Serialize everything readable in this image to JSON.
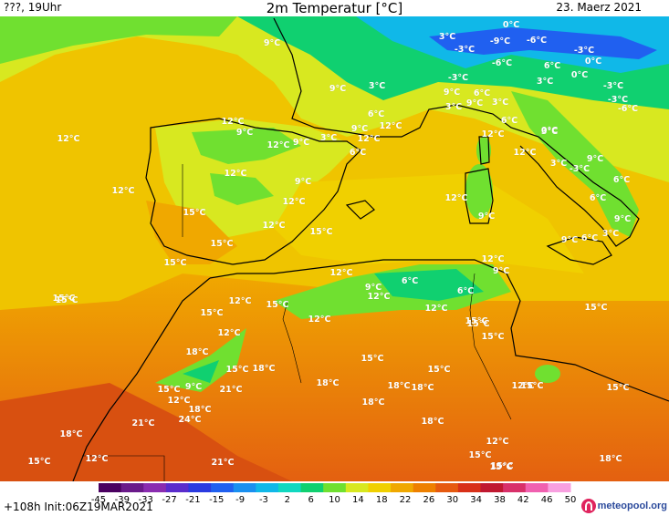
{
  "header": {
    "left": "???, 19Uhr",
    "title": "2m Temperatur [°C]",
    "date": "23. Maerz 2021"
  },
  "footer": {
    "run": "+108h Init:06Z19MAR2021",
    "brand": "meteopool.org"
  },
  "legend": {
    "ticks": [
      "-45",
      "-39",
      "-33",
      "-27",
      "-21",
      "-15",
      "-9",
      "-3",
      "2",
      "6",
      "10",
      "14",
      "18",
      "22",
      "26",
      "30",
      "34",
      "38",
      "42",
      "46",
      "50"
    ],
    "colors": [
      "#4a0060",
      "#6a1a8a",
      "#8a2cb0",
      "#5a2ccc",
      "#2a3ae0",
      "#2060f0",
      "#1a90f0",
      "#10b8e8",
      "#10d8c0",
      "#10d070",
      "#70e030",
      "#d8e820",
      "#f0d000",
      "#f0a800",
      "#ee8000",
      "#e65a10",
      "#d83018",
      "#c01830",
      "#d8306a",
      "#f060b0",
      "#f8a0e0"
    ]
  },
  "temperature_labels": [
    {
      "text": "12°C"
    },
    {
      "text": "12°C"
    },
    {
      "text": "15°C"
    },
    {
      "text": "9°C"
    },
    {
      "text": "9°C"
    },
    {
      "text": "3°C"
    },
    {
      "text": "0°C"
    },
    {
      "text": "3°C"
    },
    {
      "text": "-3°C"
    },
    {
      "text": "-9°C"
    },
    {
      "text": "-6°C"
    },
    {
      "text": "-6°C"
    },
    {
      "text": "-3°C"
    },
    {
      "text": "0°C"
    },
    {
      "text": "6°C"
    },
    {
      "text": "0°C"
    },
    {
      "text": "-3°C"
    },
    {
      "text": "3°C"
    },
    {
      "text": "-3°C"
    },
    {
      "text": "-6°C"
    },
    {
      "text": "-3°C"
    },
    {
      "text": "3°C"
    },
    {
      "text": "9°C"
    },
    {
      "text": "6°C"
    },
    {
      "text": "3°C"
    },
    {
      "text": "9°C"
    },
    {
      "text": "3°C"
    },
    {
      "text": "6°C"
    },
    {
      "text": "12°C"
    },
    {
      "text": "9°C"
    },
    {
      "text": "6°C"
    },
    {
      "text": "12°C"
    },
    {
      "text": "9°C"
    },
    {
      "text": "12°C"
    },
    {
      "text": "12°C"
    },
    {
      "text": "9°C"
    },
    {
      "text": "3°C"
    },
    {
      "text": "12°C"
    },
    {
      "text": "6°C"
    },
    {
      "text": "0°C"
    },
    {
      "text": "12°C"
    },
    {
      "text": "3°C"
    },
    {
      "text": "-3°C"
    },
    {
      "text": "9°C"
    },
    {
      "text": "6°C"
    },
    {
      "text": "12°C"
    },
    {
      "text": "9°C"
    },
    {
      "text": "6°C"
    },
    {
      "text": "12°C"
    },
    {
      "text": "9°C"
    },
    {
      "text": "15°C"
    },
    {
      "text": "12°C"
    },
    {
      "text": "12°C"
    },
    {
      "text": "15°C"
    },
    {
      "text": "15°C"
    },
    {
      "text": "9°C"
    },
    {
      "text": "6°C"
    },
    {
      "text": "3°C"
    },
    {
      "text": "9°C"
    },
    {
      "text": "12°C"
    },
    {
      "text": "9°C"
    },
    {
      "text": "15°C"
    },
    {
      "text": "12°C"
    },
    {
      "text": "9°C"
    },
    {
      "text": "6°C"
    },
    {
      "text": "12°C"
    },
    {
      "text": "6°C"
    },
    {
      "text": "12°C"
    },
    {
      "text": "12°C"
    },
    {
      "text": "15°C"
    },
    {
      "text": "15°C"
    },
    {
      "text": "15°C"
    },
    {
      "text": "12°C"
    },
    {
      "text": "15°C"
    },
    {
      "text": "15°C"
    },
    {
      "text": "18°C"
    },
    {
      "text": "12°C"
    },
    {
      "text": "15°C"
    },
    {
      "text": "18°C"
    },
    {
      "text": "15°C"
    },
    {
      "text": "15°C"
    },
    {
      "text": "15°C"
    },
    {
      "text": "9°C"
    },
    {
      "text": "12°C"
    },
    {
      "text": "21°C"
    },
    {
      "text": "18°C"
    },
    {
      "text": "24°C"
    },
    {
      "text": "21°C"
    },
    {
      "text": "18°C"
    },
    {
      "text": "18°C"
    },
    {
      "text": "21°C"
    },
    {
      "text": "18°C"
    },
    {
      "text": "18°C"
    },
    {
      "text": "18°C"
    },
    {
      "text": "15°C"
    },
    {
      "text": "18°C"
    },
    {
      "text": "15°C"
    },
    {
      "text": "12°C"
    },
    {
      "text": "15°C"
    },
    {
      "text": "18°C"
    },
    {
      "text": "12°C"
    },
    {
      "text": "15°C"
    },
    {
      "text": "15°C"
    },
    {
      "text": "15°C"
    },
    {
      "text": "15°C"
    },
    {
      "text": "12°C"
    },
    {
      "text": "15°C"
    }
  ]
}
